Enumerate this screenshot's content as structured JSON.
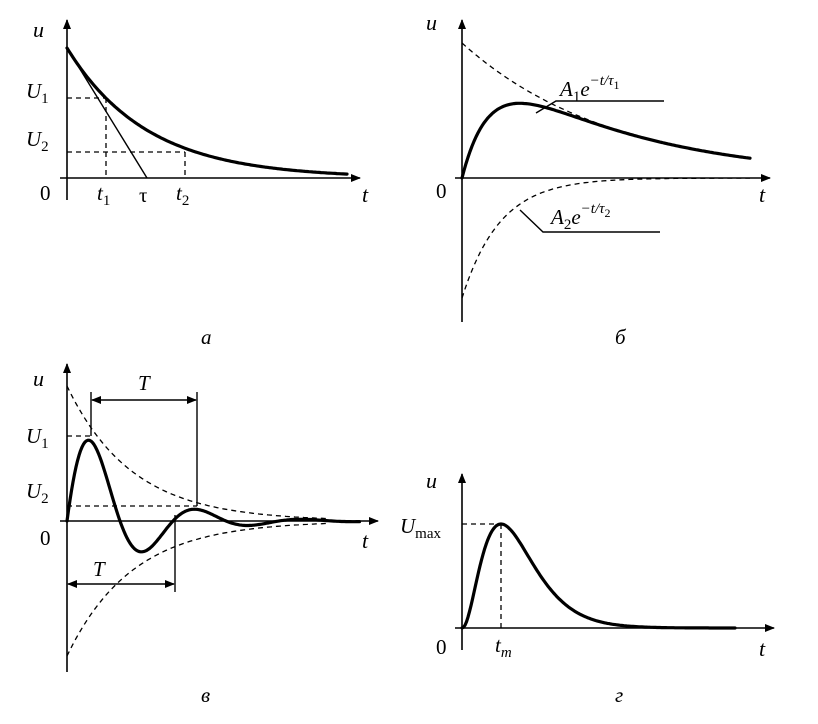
{
  "colors": {
    "background": "#ffffff",
    "ink": "#000000"
  },
  "panel_a": {
    "axis_y": "u",
    "axis_x": "t",
    "origin": "0",
    "U1": "U",
    "U1_sub": "1",
    "U2": "U",
    "U2_sub": "2",
    "t1": "t",
    "t1_sub": "1",
    "tau": "τ",
    "t2": "t",
    "t2_sub": "2",
    "caption": "а"
  },
  "panel_b": {
    "axis_y": "u",
    "axis_x": "t",
    "origin": "0",
    "label1_A": "A",
    "label1_sub": "1",
    "label1_e": "e",
    "label1_exp": "−t/τ",
    "label1_exp_sub": "1",
    "label2_A": "A",
    "label2_sub": "2",
    "label2_e": "e",
    "label2_exp": "−t/τ",
    "label2_exp_sub": "2",
    "caption": "б"
  },
  "panel_c": {
    "axis_y": "u",
    "axis_x": "t",
    "origin": "0",
    "T_top": "T",
    "T_bottom": "T",
    "U1": "U",
    "U1_sub": "1",
    "U2": "U",
    "U2_sub": "2",
    "caption": "в"
  },
  "panel_d": {
    "axis_y": "u",
    "axis_x": "t",
    "origin": "0",
    "Umax": "U",
    "Umax_sub": "max",
    "tm": "t",
    "tm_sub": "m",
    "caption": "г"
  }
}
